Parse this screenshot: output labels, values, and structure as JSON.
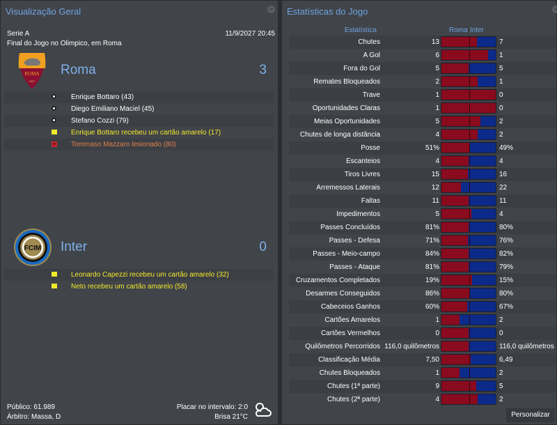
{
  "overview": {
    "title": "Visualização Geral",
    "competition": "Serie A",
    "datetime": "11/9/2027 20:45",
    "venue": "Final do Jogo no Olimpico, em Roma",
    "home": {
      "name": "Roma",
      "score": "3",
      "crest_text": "ROMA",
      "crest_year": "1927",
      "events": [
        {
          "icon": "ball-icon",
          "text": "Enrique Bottaro (43)",
          "color": "#ffffff"
        },
        {
          "icon": "ball-icon",
          "text": "Diego Emiliano Maciel (45)",
          "color": "#ffffff"
        },
        {
          "icon": "ball-icon",
          "text": "Stefano Cozzi (79)",
          "color": "#ffffff"
        },
        {
          "icon": "yellow-card-icon",
          "text": "Enrique Bottaro recebeu um cartão amarelo (17)",
          "color": "#f2e82c"
        },
        {
          "icon": "injury-icon",
          "text": "Tommaso Mazzaro lesionado (80)",
          "color": "#e0804a"
        }
      ]
    },
    "away": {
      "name": "Inter",
      "score": "0",
      "crest_text": "FCIM",
      "events": [
        {
          "icon": "yellow-card-icon",
          "text": "Leonardo Capezzi recebeu um cartão amarelo (32)",
          "color": "#f2e82c"
        },
        {
          "icon": "yellow-card-icon",
          "text": "Neto recebeu um cartão amarelo (58)",
          "color": "#f2e82c"
        }
      ]
    },
    "attendance": "Público: 61.989",
    "referee": "Árbitro: Massa, D",
    "halftime": "Placar no intervalo: 2:0",
    "weather": "Brisa 21°C"
  },
  "stats": {
    "title": "Estatísticas do Jogo",
    "col_stat": "Estatística",
    "col_home": "Roma",
    "col_away": "Inter",
    "colors": {
      "home": "#8a0a1e",
      "away": "#0c2a8a"
    },
    "rows": [
      {
        "label": "Chutes",
        "home": "13",
        "away": "7"
      },
      {
        "label": "A Gol",
        "home": "6",
        "away": "1"
      },
      {
        "label": "Fora do Gol",
        "home": "5",
        "away": "5"
      },
      {
        "label": "Remates Bloqueados",
        "home": "2",
        "away": "1"
      },
      {
        "label": "Trave",
        "home": "1",
        "away": "0"
      },
      {
        "label": "Oportunidades Claras",
        "home": "1",
        "away": "0"
      },
      {
        "label": "Meias Oportunidades",
        "home": "5",
        "away": "2"
      },
      {
        "label": "Chutes de longa distância",
        "home": "4",
        "away": "2"
      },
      {
        "label": "Posse",
        "home": "51%",
        "away": "49%"
      },
      {
        "label": "Escanteios",
        "home": "4",
        "away": "4"
      },
      {
        "label": "Tiros Livres",
        "home": "15",
        "away": "16"
      },
      {
        "label": "Arremessos Laterais",
        "home": "12",
        "away": "22"
      },
      {
        "label": "Faltas",
        "home": "11",
        "away": "11"
      },
      {
        "label": "Impedimentos",
        "home": "5",
        "away": "4"
      },
      {
        "label": "Passes Concluídos",
        "home": "81%",
        "away": "80%"
      },
      {
        "label": "Passes - Defesa",
        "home": "71%",
        "away": "76%"
      },
      {
        "label": "Passes - Meio-campo",
        "home": "84%",
        "away": "82%"
      },
      {
        "label": "Passes - Ataque",
        "home": "81%",
        "away": "79%"
      },
      {
        "label": "Cruzamentos Completados",
        "home": "19%",
        "away": "15%"
      },
      {
        "label": "Desarmes Conseguidos",
        "home": "86%",
        "away": "80%"
      },
      {
        "label": "Cabeceios Ganhos",
        "home": "60%",
        "away": "67%"
      },
      {
        "label": "Cartões Amarelos",
        "home": "1",
        "away": "2"
      },
      {
        "label": "Cartões Vermelhos",
        "home": "0",
        "away": "0"
      },
      {
        "label": "Quilômetros Percorridos",
        "home": "116,0 quilômetros",
        "away": "116,0 quilômetros"
      },
      {
        "label": "Classificação Média",
        "home": "7,50",
        "away": "6,49"
      },
      {
        "label": "Chutes Bloqueados",
        "home": "1",
        "away": "2"
      },
      {
        "label": "Chutes (1ª parte)",
        "home": "9",
        "away": "5"
      },
      {
        "label": "Chutes (2ª parte)",
        "home": "4",
        "away": "2"
      }
    ],
    "customize_label": "Personalizar"
  }
}
